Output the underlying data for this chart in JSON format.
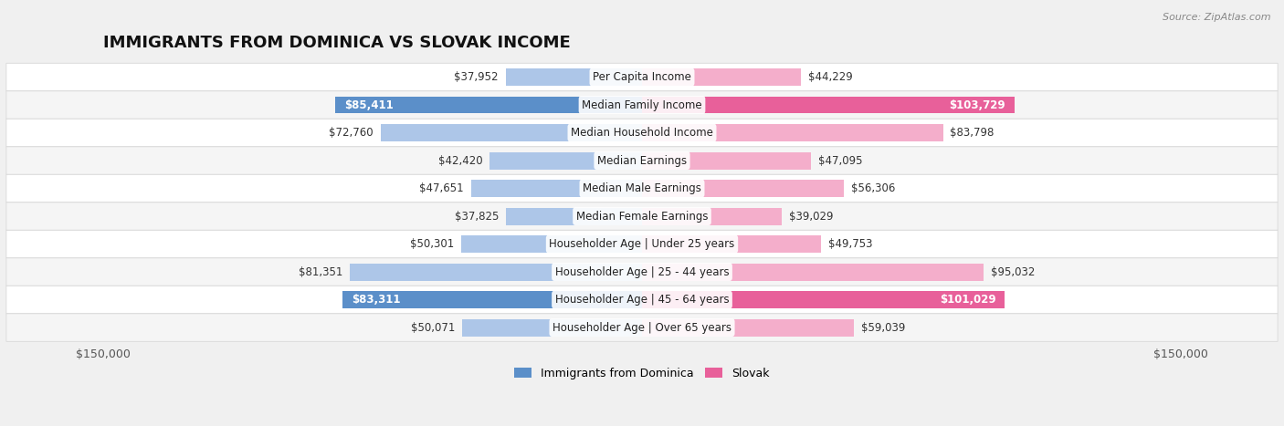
{
  "title": "IMMIGRANTS FROM DOMINICA VS SLOVAK INCOME",
  "source": "Source: ZipAtlas.com",
  "categories": [
    "Per Capita Income",
    "Median Family Income",
    "Median Household Income",
    "Median Earnings",
    "Median Male Earnings",
    "Median Female Earnings",
    "Householder Age | Under 25 years",
    "Householder Age | 25 - 44 years",
    "Householder Age | 45 - 64 years",
    "Householder Age | Over 65 years"
  ],
  "dominica_values": [
    37952,
    85411,
    72760,
    42420,
    47651,
    37825,
    50301,
    81351,
    83311,
    50071
  ],
  "slovak_values": [
    44229,
    103729,
    83798,
    47095,
    56306,
    39029,
    49753,
    95032,
    101029,
    59039
  ],
  "dominica_color_strong": "#5b8fc9",
  "dominica_color_light": "#adc6e8",
  "slovak_color_strong": "#e8609a",
  "slovak_color_light": "#f4aecb",
  "max_value": 150000,
  "background_color": "#f0f0f0",
  "row_bg_light": "#f9f9f9",
  "row_bg_dark": "#efefef",
  "bar_height": 0.62,
  "title_fontsize": 13,
  "label_fontsize": 8.5,
  "value_fontsize": 8.5,
  "legend_fontsize": 9,
  "strong_threshold": 15000
}
